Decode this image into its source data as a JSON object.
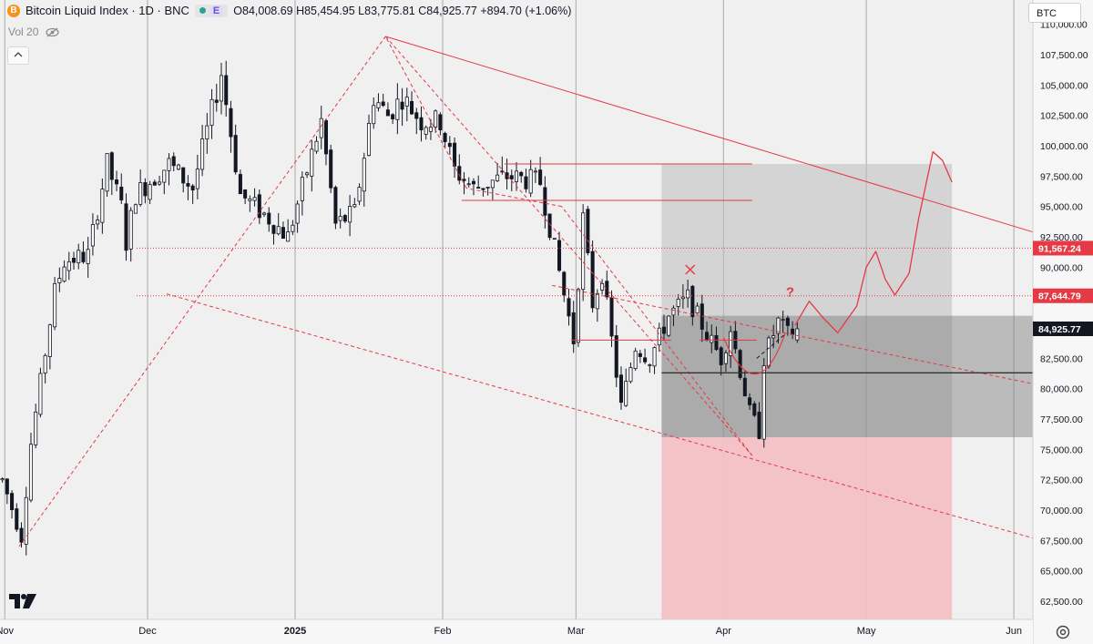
{
  "header": {
    "coin_badge": "B",
    "symbol_title": "Bitcoin Liquid Index · 1D · BNC",
    "exchange_badge": "E",
    "ohlc": "O84,008.69 H85,454.95 L83,775.81 C84,925.77 +894.70 (+1.06%)"
  },
  "indicators": {
    "volume_label": "Vol 20"
  },
  "symbol_selector": "BTC",
  "colors": {
    "up": "#ffffff",
    "down": "#131722",
    "drawing": "#e53945",
    "zone_red": "#f2c0c5",
    "zone_gray": "#bdbdbd"
  },
  "chart_data": {
    "type": "candlestick",
    "title": "Bitcoin Liquid Index · 1D · BNC",
    "y_axis": {
      "range": [
        61000,
        112000
      ],
      "ticks": [
        "110,000.00",
        "107,500.00",
        "105,000.00",
        "102,500.00",
        "100,000.00",
        "97,500.00",
        "95,000.00",
        "92,500.00",
        "90,000.00",
        "87,500.00",
        "85,000.00",
        "82,500.00",
        "80,000.00",
        "77,500.00",
        "75,000.00",
        "72,500.00",
        "70,000.00",
        "67,500.00",
        "65,000.00",
        "62,500.00"
      ],
      "highlight_labels": [
        {
          "value": 91567.24,
          "text": "91,567.24",
          "color": "#e53945"
        },
        {
          "value": 87644.79,
          "text": "87,644.79",
          "color": "#e53945"
        },
        {
          "value": 84925.77,
          "text": "84,925.77",
          "color": "#131722"
        }
      ]
    },
    "x_axis": {
      "start_date": "2024-10-31",
      "end_date": "2025-06-05",
      "ticks": [
        {
          "label": "Nov",
          "date": "2024-11-01"
        },
        {
          "label": "Dec",
          "date": "2024-12-01"
        },
        {
          "label": "2025",
          "date": "2025-01-01"
        },
        {
          "label": "Feb",
          "date": "2025-02-01"
        },
        {
          "label": "Mar",
          "date": "2025-03-01"
        },
        {
          "label": "Apr",
          "date": "2025-04-01"
        },
        {
          "label": "May",
          "date": "2025-05-01"
        },
        {
          "label": "Jun",
          "date": "2025-06-01"
        }
      ],
      "vertical_grid": true
    },
    "anchors": [
      [
        "2024-10-31",
        72500
      ],
      [
        "2024-11-04",
        67800
      ],
      [
        "2024-11-06",
        75500
      ],
      [
        "2024-11-11",
        88000
      ],
      [
        "2024-11-13",
        90500
      ],
      [
        "2024-11-18",
        91000
      ],
      [
        "2024-11-22",
        98500
      ],
      [
        "2024-11-25",
        95000
      ],
      [
        "2024-11-26",
        92000
      ],
      [
        "2024-11-28",
        96000
      ],
      [
        "2024-12-05",
        98500
      ],
      [
        "2024-12-10",
        96500
      ],
      [
        "2024-12-16",
        106000
      ],
      [
        "2024-12-20",
        96000
      ],
      [
        "2024-12-26",
        94000
      ],
      [
        "2024-12-30",
        92500
      ],
      [
        "2025-01-06",
        102000
      ],
      [
        "2025-01-09",
        93500
      ],
      [
        "2025-01-13",
        94500
      ],
      [
        "2025-01-17",
        104000
      ],
      [
        "2025-01-20",
        102500
      ],
      [
        "2025-01-23",
        104000
      ],
      [
        "2025-01-27",
        102000
      ],
      [
        "2025-01-31",
        102000
      ],
      [
        "2025-02-03",
        98000
      ],
      [
        "2025-02-07",
        96500
      ],
      [
        "2025-02-14",
        97500
      ],
      [
        "2025-02-21",
        97000
      ],
      [
        "2025-02-24",
        91500
      ],
      [
        "2025-02-28",
        84000
      ],
      [
        "2025-03-02",
        94000
      ],
      [
        "2025-03-04",
        87000
      ],
      [
        "2025-03-06",
        89500
      ],
      [
        "2025-03-10",
        78500
      ],
      [
        "2025-03-13",
        83500
      ],
      [
        "2025-03-16",
        82500
      ],
      [
        "2025-03-20",
        86000
      ],
      [
        "2025-03-24",
        87500
      ],
      [
        "2025-03-28",
        84500
      ],
      [
        "2025-03-31",
        82500
      ],
      [
        "2025-04-02",
        85000
      ],
      [
        "2025-04-06",
        78000
      ],
      [
        "2025-04-08",
        76500
      ],
      [
        "2025-04-09",
        82500
      ],
      [
        "2025-04-12",
        85500
      ],
      [
        "2025-04-14",
        84500
      ],
      [
        "2025-04-16",
        84925.77
      ]
    ],
    "last_ohlc": {
      "open": 84008.69,
      "high": 85454.95,
      "low": 83775.81,
      "close": 84925.77,
      "change": 894.7,
      "change_pct": 1.06
    }
  },
  "drawings": {
    "channel_upper": [
      [
        "2025-01-20",
        109000
      ],
      [
        "2025-06-05",
        92900
      ]
    ],
    "channel_lower": [
      [
        "2024-12-05",
        87800
      ],
      [
        "2025-06-05",
        67700
      ]
    ],
    "zigzag": [
      [
        "2024-11-04",
        67000
      ],
      [
        "2025-01-20",
        109000
      ],
      [
        "2025-04-07",
        74500
      ],
      [
        "2025-02-26",
        95000
      ],
      [
        "2025-02-06",
        96500
      ],
      [
        "2025-01-20",
        109000
      ]
    ],
    "mid_dashed": [
      [
        "2025-02-24",
        88500
      ],
      [
        "2025-06-05",
        80400
      ]
    ],
    "gray_zone": {
      "start": "2025-03-19",
      "end": "2025-05-19",
      "top": 98500,
      "bottom": 76000
    },
    "red_zone": {
      "start": "2025-03-19",
      "end": "2025-05-19",
      "top": 76000,
      "bottom": 61000
    },
    "dark_box": {
      "start": "2025-03-19",
      "end": "2025-06-05",
      "top": 86000,
      "bottom": 76000
    },
    "entry_line": {
      "start": "2025-03-19",
      "end": "2025-06-05",
      "value": 81300
    },
    "resistance_lines": [
      {
        "start": "2025-02-14",
        "end": "2025-04-07",
        "value": 98500
      },
      {
        "start": "2025-02-05",
        "end": "2025-04-07",
        "value": 95500
      },
      {
        "start": "2025-02-28",
        "end": "2025-03-21",
        "value": 84000
      },
      {
        "start": "2025-03-27",
        "end": "2025-04-08",
        "value": 84000
      }
    ],
    "cross_mark": {
      "date": "2025-03-25",
      "value": 89800
    },
    "question_mark": {
      "date": "2025-04-15",
      "value": 87600,
      "text": "?"
    },
    "dotted_levels": [
      91567.24,
      87644.79
    ]
  }
}
